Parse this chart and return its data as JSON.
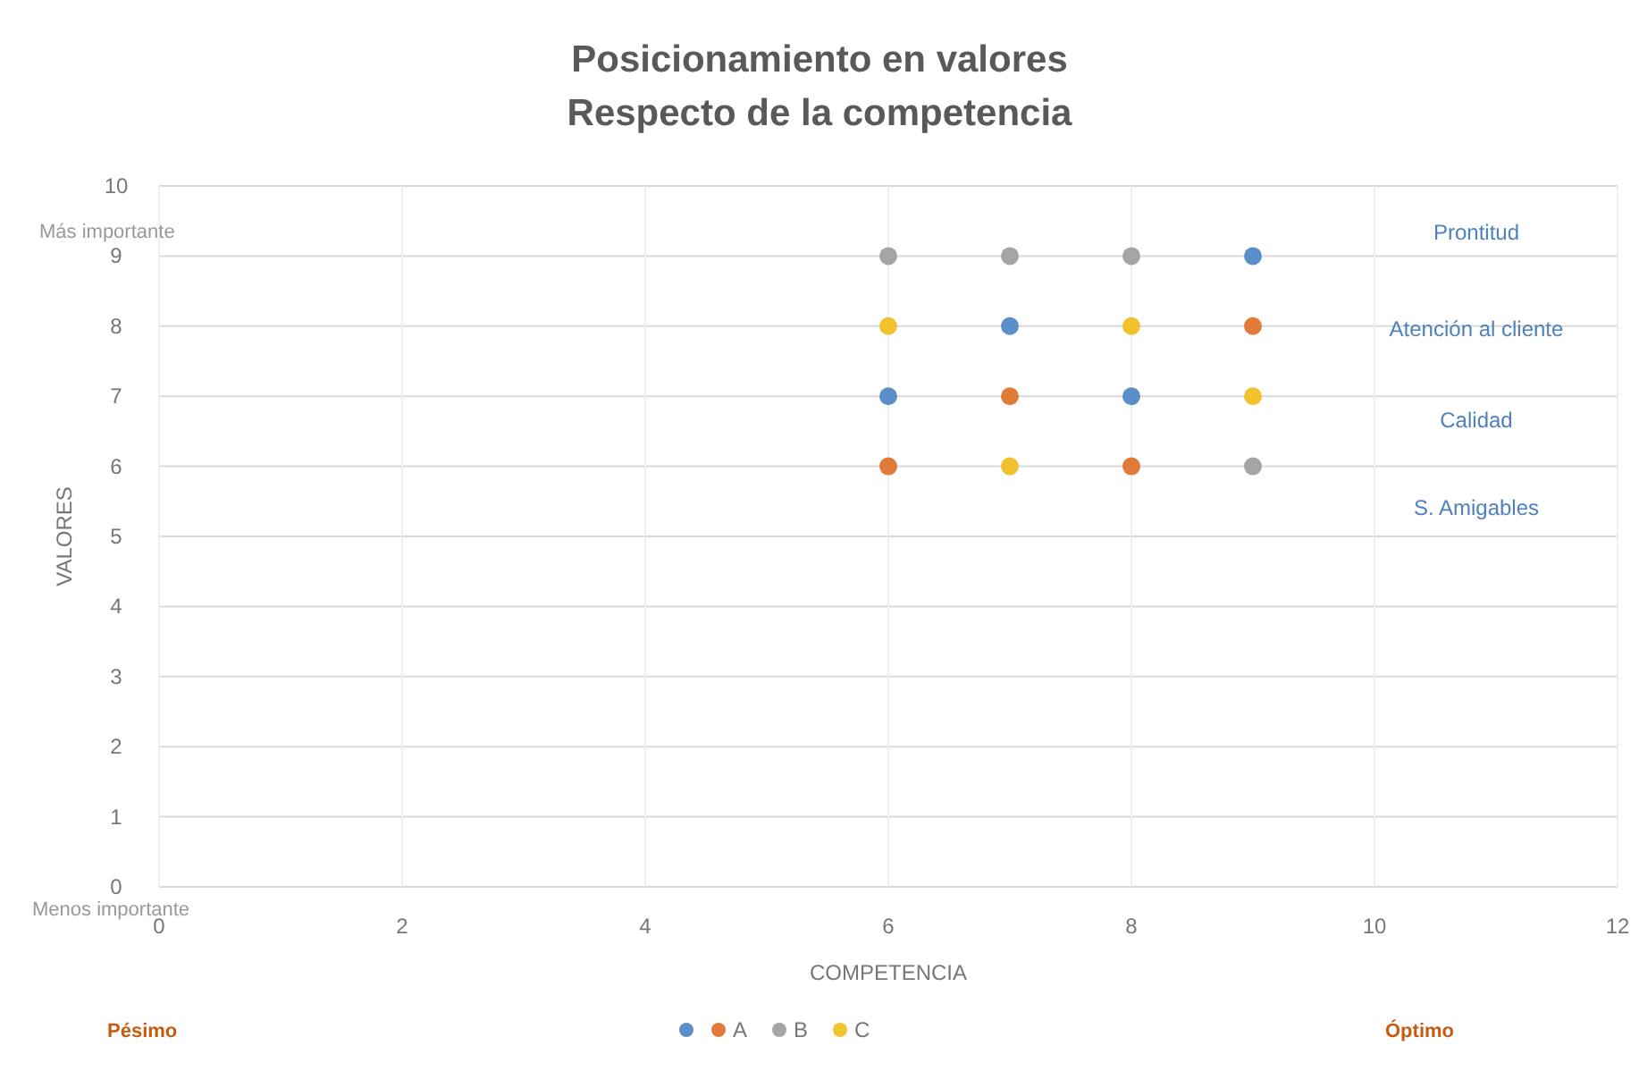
{
  "chart_data": {
    "type": "scatter",
    "title": "Posicionamiento en valores",
    "subtitle": "Respecto de la competencia",
    "xlabel": "COMPETENCIA",
    "ylabel": "VALORES",
    "xlim": [
      0,
      12
    ],
    "xticks": [
      0,
      2,
      4,
      6,
      8,
      10,
      12
    ],
    "ylim": [
      0,
      10
    ],
    "yticks": [
      0,
      1,
      2,
      3,
      4,
      5,
      6,
      7,
      8,
      9,
      10
    ],
    "grid": true,
    "legend": "bottom",
    "marker": "circle",
    "series": [
      {
        "color": "#5b8fc9",
        "x": [
          9,
          7,
          6,
          8
        ],
        "values": [
          9,
          8,
          7,
          7
        ]
      },
      {
        "name": "A",
        "color": "#e07b39",
        "x": [
          9,
          7,
          6,
          8
        ],
        "values": [
          8,
          7,
          6,
          6
        ]
      },
      {
        "name": "B",
        "color": "#a5a5a5",
        "x": [
          6,
          7,
          8,
          9
        ],
        "values": [
          9,
          9,
          9,
          6
        ]
      },
      {
        "name": "C",
        "color": "#f2c12e",
        "x": [
          6,
          8,
          9,
          7
        ],
        "values": [
          8,
          8,
          7,
          6
        ]
      }
    ],
    "annotations": [
      "Prontitud",
      "Atención al cliente",
      "Calidad",
      "S. Amigables",
      "Más importante",
      "Menos importante",
      "Pésimo",
      "Óptimo"
    ]
  }
}
